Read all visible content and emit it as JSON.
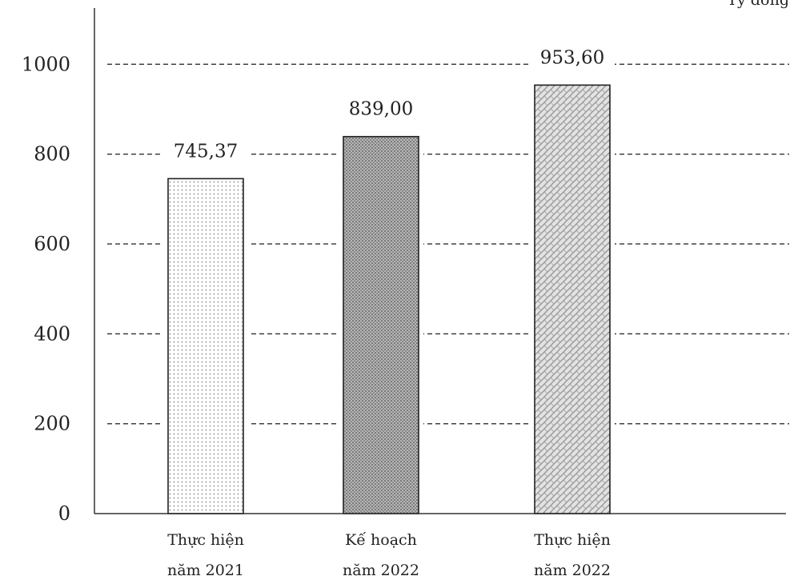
{
  "corner_note": "Tỷ đồng",
  "chart_data": {
    "type": "bar",
    "categories": [
      [
        "Thực hiện",
        "năm 2021"
      ],
      [
        "Kế hoạch",
        "năm 2022"
      ],
      [
        "Thực hiện",
        "năm 2022"
      ]
    ],
    "values": [
      745.37,
      839.0,
      953.6
    ],
    "value_labels": [
      "745,37",
      "839,00",
      "953,60"
    ],
    "yticks": [
      0,
      200,
      400,
      600,
      800,
      1000
    ],
    "ylim": [
      0,
      1000
    ],
    "grid": "dashed-horizontal",
    "legend": "none",
    "colors": {
      "axis": "#333333",
      "grid": "#333333",
      "bar_outline": "#222222",
      "bar_fills": [
        "#f0f0f0",
        "#a9a9a9",
        "#cfcfcf"
      ]
    }
  }
}
